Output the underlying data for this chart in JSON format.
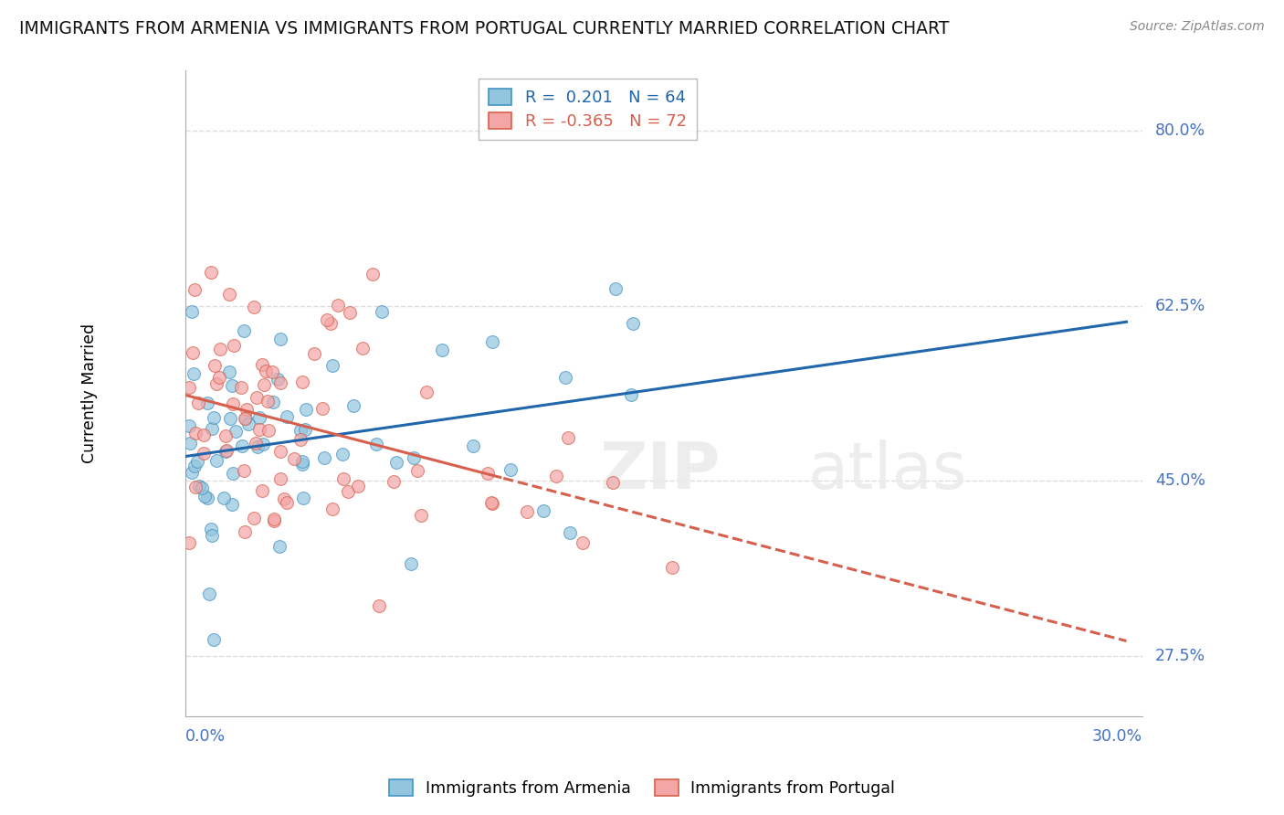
{
  "title": "IMMIGRANTS FROM ARMENIA VS IMMIGRANTS FROM PORTUGAL CURRENTLY MARRIED CORRELATION CHART",
  "source": "Source: ZipAtlas.com",
  "ylabel": "Currently Married",
  "yticks_labels": [
    "27.5%",
    "45.0%",
    "62.5%",
    "80.0%"
  ],
  "yticks_vals": [
    0.275,
    0.45,
    0.625,
    0.8
  ],
  "xtick_left_label": "0.0%",
  "xtick_right_label": "30.0%",
  "xlim": [
    0.0,
    0.3
  ],
  "ylim": [
    0.215,
    0.86
  ],
  "armenia_color": "#92c5de",
  "armenia_edge": "#4393c3",
  "portugal_color": "#f4a5a5",
  "portugal_edge": "#d6604d",
  "armenia_line_color": "#2166ac",
  "portugal_line_color": "#d6604d",
  "armenia_R": 0.201,
  "armenia_N": 64,
  "portugal_R": -0.365,
  "portugal_N": 72,
  "grid_color": "#dddddd",
  "background_color": "#ffffff",
  "label_color": "#4472c4",
  "marker_size": 100,
  "marker_alpha": 0.7
}
